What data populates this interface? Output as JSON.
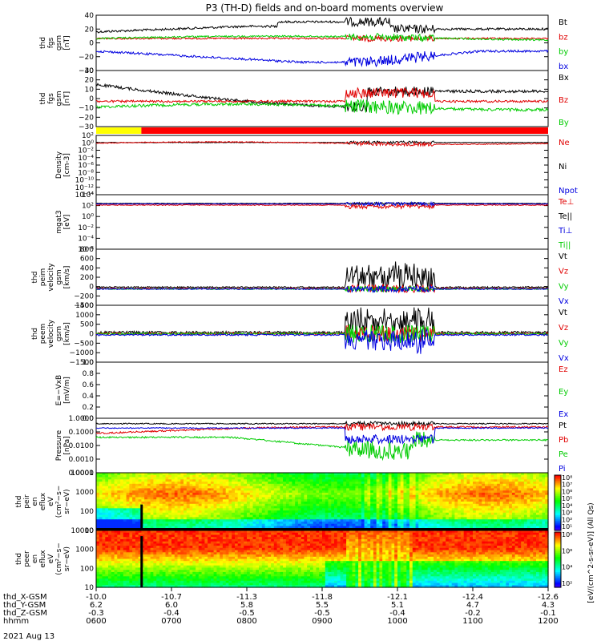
{
  "title": "P3 (TH-D) fields and on-board moments overview",
  "date_label": "2021 Aug 13",
  "colors": {
    "black": "#000000",
    "red": "#e00000",
    "green": "#00cc00",
    "blue": "#0000e0",
    "yellow": "#ffff00",
    "barRed": "#ff0000"
  },
  "chart_data": [
    {
      "type": "line",
      "id": "fgs_gsm",
      "ylabel": [
        "thd",
        "fgs",
        "gsm",
        "[nT]"
      ],
      "ylim": [
        -40,
        40
      ],
      "ticks": [
        "40",
        "20",
        "0",
        "−20",
        "−40"
      ],
      "series": [
        {
          "name": "Bt",
          "color": "black"
        },
        {
          "name": "bz",
          "color": "red"
        },
        {
          "name": "by",
          "color": "green"
        },
        {
          "name": "bx",
          "color": "blue"
        }
      ]
    },
    {
      "type": "line",
      "id": "fgs_gsm_b",
      "ylabel": [
        "thd",
        "fgs",
        "gsm",
        "[nT]"
      ],
      "ylim": [
        -35,
        30
      ],
      "ticks": [
        "30",
        "20",
        "10",
        "0",
        "−10",
        "−20",
        "−30"
      ],
      "series": [
        {
          "name": "Bx",
          "color": "black"
        },
        {
          "name": "Bz",
          "color": "red"
        },
        {
          "name": "By",
          "color": "green"
        }
      ]
    },
    {
      "type": "bar",
      "id": "mode_bar"
    },
    {
      "type": "line",
      "id": "density",
      "ylabel": [
        "Density",
        "[cm-3]"
      ],
      "log": true,
      "ticks": [
        "10²",
        "10⁰",
        "10⁻²",
        "10⁻⁴",
        "10⁻⁶",
        "10⁻⁸",
        "10⁻¹⁰",
        "10⁻¹²",
        "10⁻¹⁴"
      ],
      "series": [
        {
          "name": "Ne",
          "color": "red"
        },
        {
          "name": "Ni",
          "color": "black"
        },
        {
          "name": "Npot",
          "color": "blue"
        }
      ]
    },
    {
      "type": "line",
      "id": "temperature",
      "ylabel": [
        "mgat3",
        "[eV]"
      ],
      "log": true,
      "ticks": [
        "10⁴",
        "10²",
        "10⁰",
        "10⁻²",
        "10⁻⁴",
        "10⁻⁶"
      ],
      "series": [
        {
          "name": "Te⊥",
          "color": "red"
        },
        {
          "name": "Te||",
          "color": "black"
        },
        {
          "name": "Ti⊥",
          "color": "blue"
        },
        {
          "name": "Ti||",
          "color": "green"
        }
      ]
    },
    {
      "type": "line",
      "id": "peim_velocity",
      "ylabel": [
        "thd",
        "peim",
        "velocity",
        "gsm",
        "[km/s]"
      ],
      "ylim": [
        -200,
        800
      ],
      "ticks": [
        "800",
        "600",
        "400",
        "200",
        "0",
        "−200",
        "−400"
      ],
      "series": [
        {
          "name": "Vt",
          "color": "black"
        },
        {
          "name": "Vz",
          "color": "red"
        },
        {
          "name": "Vy",
          "color": "green"
        },
        {
          "name": "Vx",
          "color": "blue"
        }
      ]
    },
    {
      "type": "line",
      "id": "peem_velocity",
      "ylabel": [
        "thd",
        "peem",
        "velocity",
        "gsm",
        "[km/s]"
      ],
      "ylim": [
        -1500,
        1500
      ],
      "ticks": [
        "1500",
        "1000",
        "500",
        "0",
        "−500",
        "−1000",
        "−1500"
      ],
      "series": [
        {
          "name": "Vt",
          "color": "black"
        },
        {
          "name": "Vz",
          "color": "red"
        },
        {
          "name": "Vy",
          "color": "green"
        },
        {
          "name": "Vx",
          "color": "blue"
        }
      ]
    },
    {
      "type": "line",
      "id": "efield",
      "ylabel": [
        "E=−VxB",
        "[mV/m]"
      ],
      "ylim": [
        0,
        1
      ],
      "ticks": [
        "1.0",
        "0.8",
        "0.6",
        "0.4",
        "0.2",
        "0.0"
      ],
      "series": [
        {
          "name": "Ez",
          "color": "red"
        },
        {
          "name": "Ey",
          "color": "green"
        },
        {
          "name": "Ex",
          "color": "blue"
        }
      ]
    },
    {
      "type": "line",
      "id": "pressure",
      "ylabel": [
        "Pressure",
        "[nPa]"
      ],
      "log": true,
      "ticks": [
        "1.0000",
        "0.1000",
        "0.0100",
        "0.0010",
        "0.0001"
      ],
      "series": [
        {
          "name": "Pt",
          "color": "black"
        },
        {
          "name": "Pb",
          "color": "red"
        },
        {
          "name": "Pe",
          "color": "green"
        },
        {
          "name": "Pi",
          "color": "blue"
        }
      ]
    },
    {
      "type": "heatmap",
      "id": "peir_eflux",
      "ylabel": [
        "thd",
        "peir",
        "en",
        "eflux",
        "eV",
        "(cm²−s−",
        "sr−eV)"
      ],
      "ticks": [
        "10000",
        "1000",
        "100",
        "10"
      ]
    },
    {
      "type": "heatmap",
      "id": "peer_eflux",
      "ylabel": [
        "thd",
        "peer",
        "en",
        "eflux",
        "eV",
        "(cm²−s−",
        "sr−eV)"
      ],
      "ticks": [
        "10000",
        "1000",
        "100",
        "10"
      ]
    }
  ],
  "colorbar": {
    "label": "[eV/(cm^2-s-sr-eV)] (All Qs)",
    "ticks": [
      "10⁸",
      "10⁷",
      "10⁶",
      "10⁵",
      "10⁴",
      "10³",
      "10²",
      "10¹"
    ]
  },
  "colorbar_lower": {
    "ticks": [
      "10⁸",
      "10⁶",
      "10⁴",
      "10²"
    ]
  },
  "axis": {
    "rows": [
      {
        "label": "thd_X-GSM",
        "values": [
          "-10.0",
          "-10.7",
          "-11.3",
          "-11.8",
          "-12.1",
          "-12.4",
          "-12.6"
        ]
      },
      {
        "label": "thd_Y-GSM",
        "values": [
          "6.2",
          "6.0",
          "5.8",
          "5.5",
          "5.1",
          "4.7",
          "4.3"
        ]
      },
      {
        "label": "thd_Z-GSM",
        "values": [
          "-0.3",
          "-0.4",
          "-0.5",
          "-0.5",
          "-0.4",
          "-0.2",
          "-0.1"
        ]
      },
      {
        "label": "hhmm",
        "values": [
          "0600",
          "0700",
          "0800",
          "0900",
          "1000",
          "1100",
          "1200"
        ]
      }
    ]
  }
}
